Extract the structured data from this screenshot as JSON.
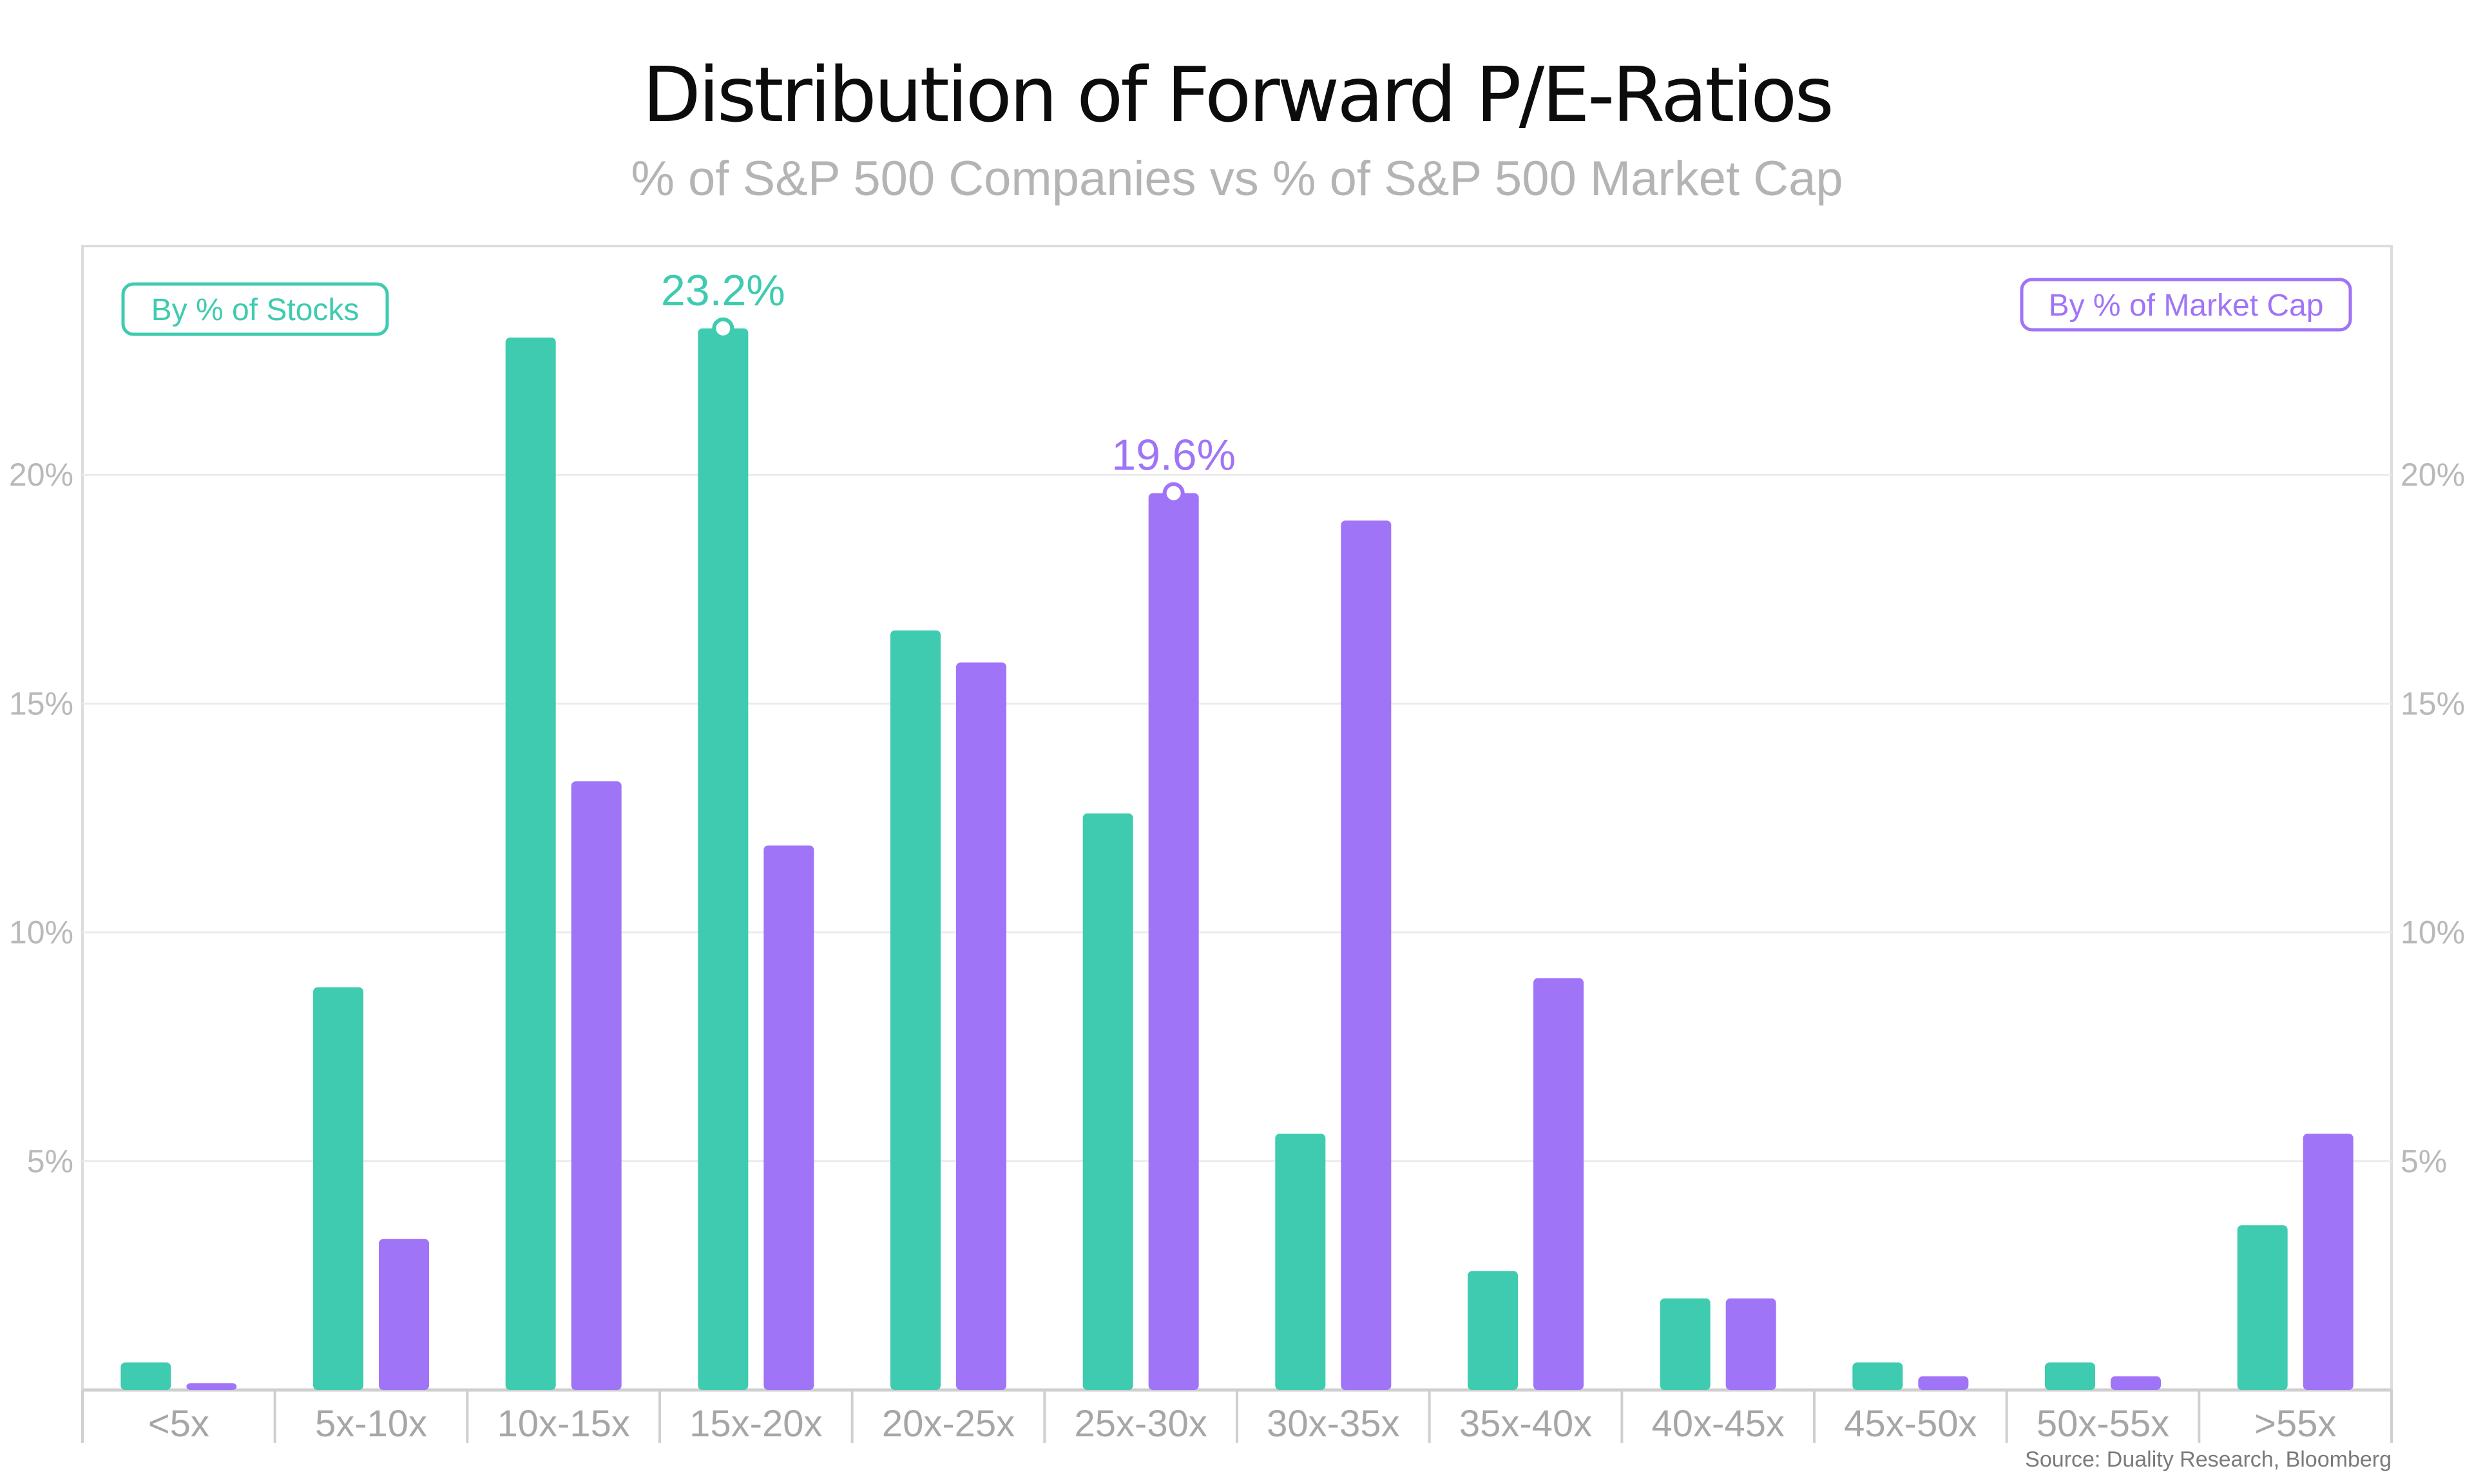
{
  "chart_data": {
    "type": "bar",
    "title": "Distribution of Forward P/E-Ratios",
    "subtitle": "% of S&P 500 Companies vs % of S&P 500 Market Cap",
    "categories": [
      "<5x",
      "5x-10x",
      "10x-15x",
      "15x-20x",
      "20x-25x",
      "25x-30x",
      "30x-35x",
      "35x-40x",
      "40x-45x",
      "45x-50x",
      "50x-55x",
      ">55x"
    ],
    "series": [
      {
        "name": "By % of Stocks",
        "color": "#3ecbb0",
        "values": [
          0.6,
          8.8,
          23.0,
          23.2,
          16.6,
          12.6,
          5.6,
          2.6,
          2.0,
          0.6,
          0.6,
          3.6
        ]
      },
      {
        "name": "By % of Market Cap",
        "color": "#a074f6",
        "values": [
          0.15,
          3.3,
          13.3,
          11.9,
          15.9,
          19.6,
          19.0,
          9.0,
          2.0,
          0.3,
          0.3,
          5.6
        ]
      }
    ],
    "yticks": [
      "5%",
      "10%",
      "15%",
      "20%"
    ],
    "ytick_values": [
      5,
      10,
      15,
      20
    ],
    "ylim": [
      0,
      25
    ],
    "grid": true,
    "annotations": [
      {
        "text": "23.2%",
        "series": 0,
        "category": "15x-20x",
        "value": 23.2
      },
      {
        "text": "19.6%",
        "series": 1,
        "category": "25x-30x",
        "value": 19.6
      }
    ],
    "legend": [
      {
        "text": "By % of Stocks",
        "placement": "top-left",
        "color": "#3ecbb0"
      },
      {
        "text": "By % of Market Cap",
        "placement": "top-right",
        "color": "#a074f6"
      }
    ],
    "source": "Source: Duality Research, Bloomberg"
  }
}
